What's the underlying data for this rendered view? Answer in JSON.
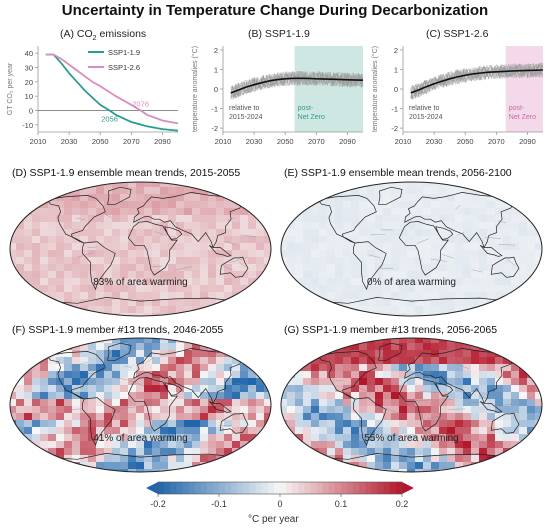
{
  "title": "Uncertainty in Temperature Change During Decarbonization",
  "colors": {
    "ssp119": "#2a9d8f",
    "ssp126": "#d98cbf",
    "shade119": "#cfe7e2",
    "shade126": "#f4d9eb",
    "warm": "#d04a33",
    "cool": "#2f6fb0"
  },
  "panels": {
    "a": {
      "title_pre": "(A) CO",
      "title_sub": "2",
      "title_post": " emissions",
      "ylabel": "GT CO₂ per year",
      "yticks": [
        "40",
        "30",
        "20",
        "10",
        "0",
        "-10"
      ],
      "xticks": [
        "2010",
        "2030",
        "2050",
        "2070",
        "2090"
      ],
      "legend": [
        "SSP1-1.9",
        "SSP1-2.6"
      ],
      "netzero_119": "2056",
      "netzero_126": "2076"
    },
    "b": {
      "title": "(B) SSP1-1.9",
      "ylabel": "temperature anomalies (°C)",
      "yticks": [
        "2",
        "1",
        "0",
        "-1",
        "-2"
      ],
      "xticks": [
        "2010",
        "2030",
        "2050",
        "2070",
        "2090"
      ],
      "note_left": [
        "relative to",
        "2015-2024"
      ],
      "note_right": [
        "post-",
        "Net Zero"
      ]
    },
    "c": {
      "title": "(C) SSP1-2.6",
      "ylabel": "temperature anomalies (°C)",
      "yticks": [
        "2",
        "1",
        "0",
        "-1",
        "-2"
      ],
      "xticks": [
        "2010",
        "2030",
        "2050",
        "2070",
        "2090"
      ],
      "note_left": [
        "relative to",
        "2015-2024"
      ],
      "note_right": [
        "post-",
        "Net Zero"
      ]
    },
    "d": {
      "title": "(D) SSP1-1.9 ensemble mean trends, 2015-2055",
      "pct": "83% of area warming"
    },
    "e": {
      "title": "(E) SSP1-1.9 ensemble mean trends, 2056-2100",
      "pct": "0% of area warming"
    },
    "f": {
      "title": "(F) SSP1-1.9 member #13 trends, 2046-2055",
      "pct": "41% of area warming"
    },
    "g": {
      "title": "(G) SSP1-1.9 member #13 trends, 2056-2065",
      "pct": "55% of area warming"
    }
  },
  "colorbar": {
    "ticks": [
      "-0.2",
      "-0.1",
      "0",
      "0.1",
      "0.2"
    ],
    "label": "°C per year"
  },
  "chart_data": [
    {
      "type": "line",
      "title": "(A) CO2 emissions",
      "ylabel": "GT CO2 per year",
      "xlim": [
        2010,
        2100
      ],
      "ylim": [
        -15,
        45
      ],
      "series": [
        {
          "name": "SSP1-1.9",
          "x": [
            2015,
            2020,
            2025,
            2030,
            2035,
            2040,
            2045,
            2050,
            2056,
            2060,
            2070,
            2080,
            2090,
            2100
          ],
          "values": [
            39,
            39,
            33,
            26,
            20,
            14,
            9,
            4,
            0,
            -3,
            -8,
            -11,
            -13,
            -14
          ]
        },
        {
          "name": "SSP1-2.6",
          "x": [
            2015,
            2020,
            2025,
            2030,
            2035,
            2040,
            2045,
            2050,
            2060,
            2070,
            2076,
            2080,
            2090,
            2100
          ],
          "values": [
            39,
            39,
            36,
            32,
            28,
            24,
            20,
            17,
            10,
            4,
            0,
            -3,
            -7,
            -9
          ]
        }
      ]
    },
    {
      "type": "line",
      "title": "(B) SSP1-1.9",
      "ylabel": "temperature anomalies (°C)",
      "xlim": [
        2010,
        2100
      ],
      "ylim": [
        -2.2,
        2.2
      ],
      "series": [
        {
          "x": [
            2015,
            2020,
            2025,
            2030,
            2035,
            2040,
            2045,
            2050,
            2055,
            2060,
            2065,
            2070,
            2080,
            2090,
            2100
          ],
          "values": [
            -0.2,
            -0.05,
            0.1,
            0.22,
            0.32,
            0.42,
            0.48,
            0.52,
            0.55,
            0.55,
            0.54,
            0.52,
            0.5,
            0.47,
            0.45
          ]
        }
      ]
    },
    {
      "type": "line",
      "title": "(C) SSP1-2.6",
      "ylabel": "temperature anomalies (°C)",
      "xlim": [
        2010,
        2100
      ],
      "ylim": [
        -2.2,
        2.2
      ],
      "series": [
        {
          "x": [
            2015,
            2020,
            2025,
            2030,
            2035,
            2040,
            2045,
            2050,
            2055,
            2060,
            2065,
            2070,
            2080,
            2090,
            2100
          ],
          "values": [
            -0.2,
            -0.05,
            0.12,
            0.27,
            0.4,
            0.52,
            0.62,
            0.7,
            0.77,
            0.82,
            0.86,
            0.88,
            0.92,
            0.95,
            0.97
          ]
        }
      ]
    },
    {
      "type": "heatmap",
      "title": "(D) SSP1-1.9 ensemble mean trends, 2015-2055",
      "annotation": "83% of area warming",
      "colorbar_ticks": [
        -0.2,
        -0.1,
        0,
        0.1,
        0.2
      ]
    },
    {
      "type": "heatmap",
      "title": "(E) SSP1-1.9 ensemble mean trends, 2056-2100",
      "annotation": "0% of area warming"
    },
    {
      "type": "heatmap",
      "title": "(F) SSP1-1.9 member #13 trends, 2046-2055",
      "annotation": "41% of area warming"
    },
    {
      "type": "heatmap",
      "title": "(G) SSP1-1.9 member #13 trends, 2056-2065",
      "annotation": "55% of area warming"
    }
  ]
}
